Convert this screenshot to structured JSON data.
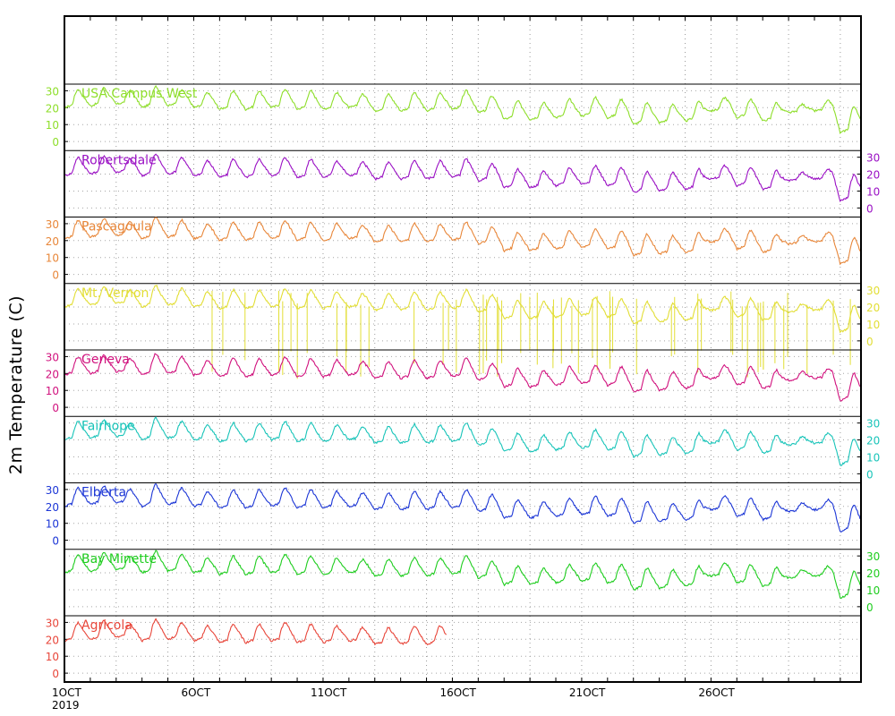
{
  "chart_data": {
    "type": "line",
    "title": "",
    "ylabel": "2m Temperature (C)",
    "xlabel": "",
    "x_start_date": "2019-10-01",
    "x_end_date": "2019-10-31",
    "x_ticks": [
      {
        "label": "1OCT",
        "sublabel": "2019",
        "day": 0
      },
      {
        "label": "6OCT",
        "day": 5
      },
      {
        "label": "11OCT",
        "day": 10
      },
      {
        "label": "16OCT",
        "day": 15
      },
      {
        "label": "21OCT",
        "day": 20
      },
      {
        "label": "26OCT",
        "day": 25
      }
    ],
    "ylim": [
      -5,
      40
    ],
    "y_ticks": [
      0,
      10,
      20,
      30
    ],
    "grid": true,
    "daily_max": [
      31,
      32,
      30,
      33,
      31,
      29,
      30,
      30,
      31,
      30,
      29,
      28,
      28,
      29,
      29,
      30,
      27,
      24,
      23,
      25,
      26,
      25,
      23,
      22,
      24,
      26,
      25,
      23,
      22,
      24,
      21
    ],
    "daily_min": [
      20,
      21,
      22,
      20,
      21,
      20,
      19,
      19,
      20,
      19,
      19,
      20,
      18,
      18,
      18,
      19,
      17,
      13,
      13,
      14,
      15,
      14,
      10,
      11,
      12,
      18,
      14,
      12,
      17,
      18,
      5
    ],
    "series": [
      {
        "name": "USA Campus West",
        "color": "#8ede2a",
        "axis_side": "left",
        "offset": 0,
        "gaps": [],
        "spikes": false
      },
      {
        "name": "Robertsdale",
        "color": "#9a10c4",
        "axis_side": "right",
        "offset": -1,
        "gaps": [],
        "spikes": false
      },
      {
        "name": "Pascagoula",
        "color": "#e8873a",
        "axis_side": "left",
        "offset": 1,
        "gaps": [],
        "spikes": false
      },
      {
        "name": "Mt. Vernon",
        "color": "#e2de35",
        "axis_side": "right",
        "offset": 0,
        "gaps": [],
        "spikes": true
      },
      {
        "name": "Geneva",
        "color": "#d1127e",
        "axis_side": "left",
        "offset": -1,
        "gaps": [],
        "spikes": false
      },
      {
        "name": "Fairhope",
        "color": "#18c4b9",
        "axis_side": "right",
        "offset": 0,
        "gaps": [],
        "spikes": false
      },
      {
        "name": "Elberta",
        "color": "#1c36d6",
        "axis_side": "left",
        "offset": 0,
        "gaps": [],
        "spikes": false
      },
      {
        "name": "Bay Minette",
        "color": "#1ecd1e",
        "axis_side": "right",
        "offset": 0,
        "gaps": [],
        "spikes": false
      },
      {
        "name": "Agricola",
        "color": "#e8463a",
        "axis_side": "left",
        "offset": -1,
        "gaps": [
          [
            14.8,
            30.8
          ]
        ],
        "spikes": false
      }
    ]
  }
}
